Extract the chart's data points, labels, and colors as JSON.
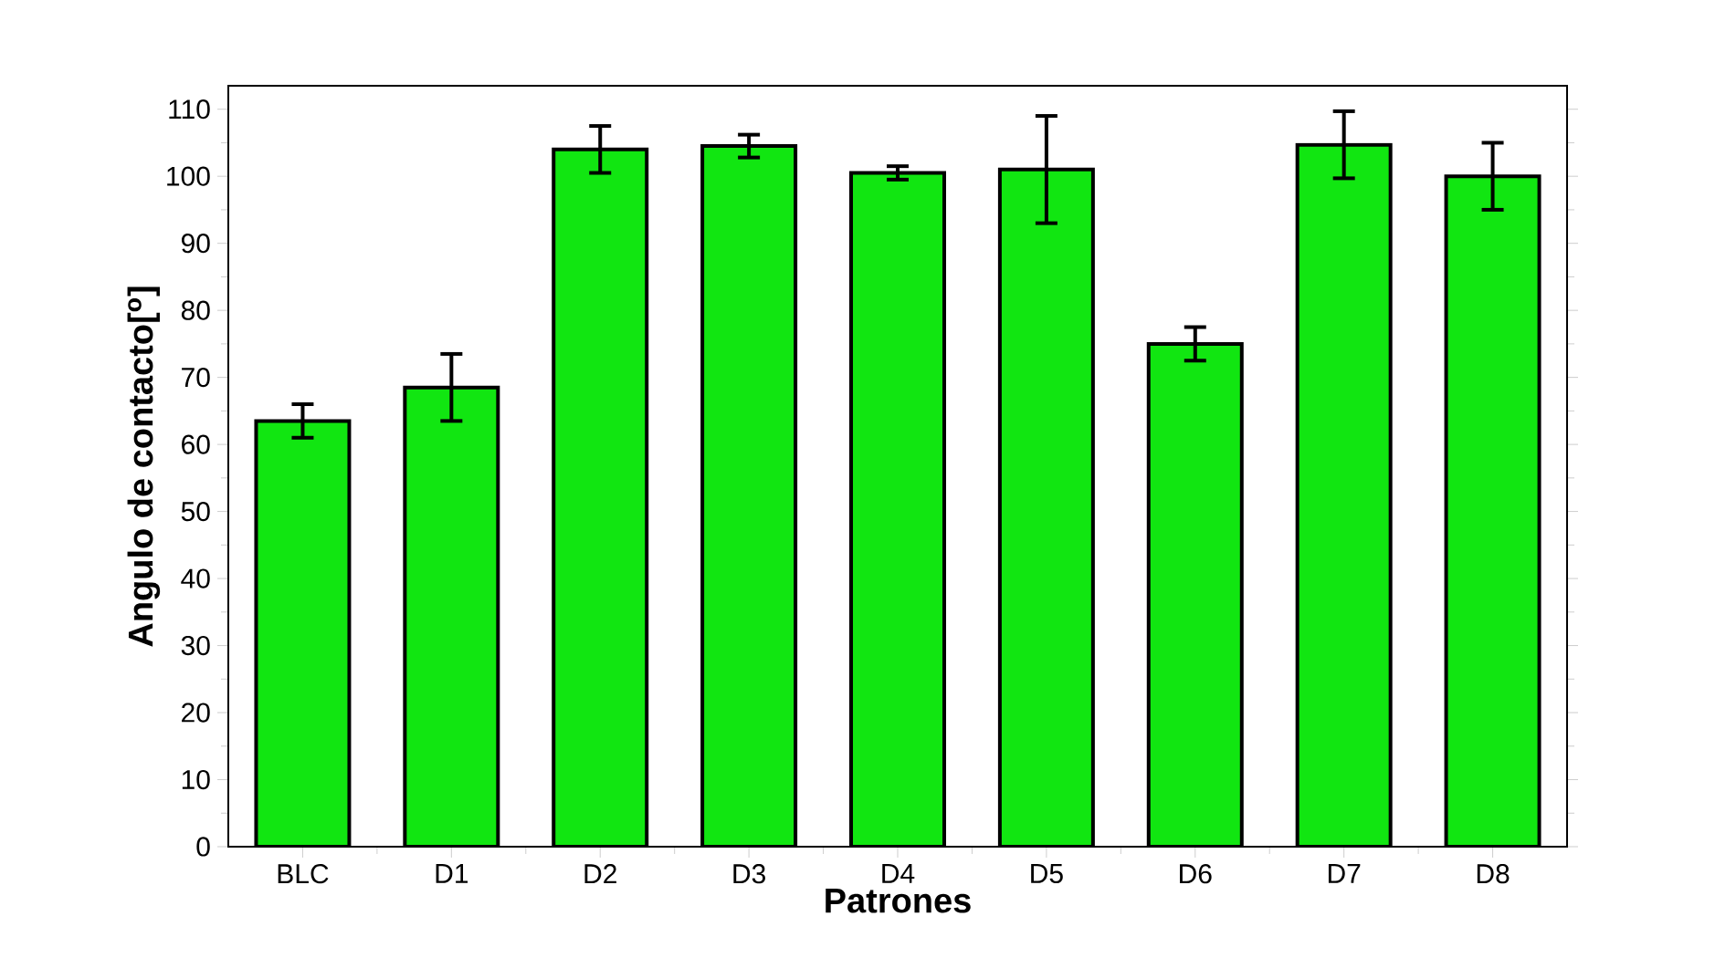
{
  "chart_data": {
    "type": "bar",
    "xlabel": "Patrones",
    "ylabel": "Angulo de contacto[$^{o}$]",
    "categories": [
      "BLC",
      "D1",
      "D2",
      "D3",
      "D4",
      "D5",
      "D6",
      "D7",
      "D8"
    ],
    "values": [
      63.5,
      68.5,
      104,
      104.5,
      100.5,
      101,
      75,
      104.7,
      100
    ],
    "errors": [
      2.5,
      5,
      3.5,
      1.7,
      1,
      8,
      2.5,
      5,
      5
    ],
    "color": "#11e611",
    "ylim": [
      0,
      113.5
    ],
    "yticks": [
      0,
      10,
      20,
      30,
      40,
      50,
      60,
      70,
      80,
      90,
      100,
      110
    ],
    "grid": false
  }
}
